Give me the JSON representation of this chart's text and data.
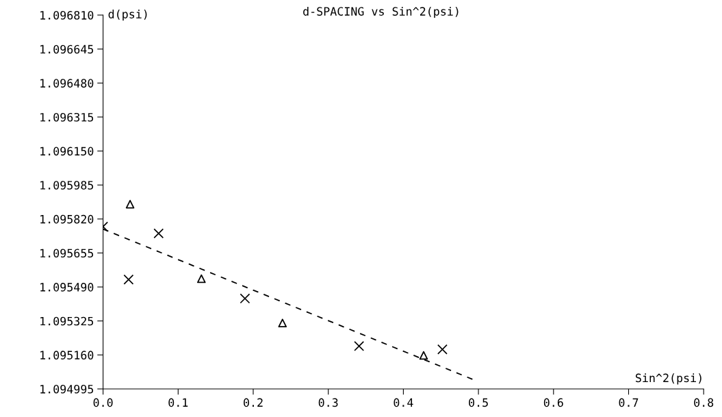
{
  "chart_data": {
    "type": "scatter",
    "title": "d-SPACING vs Sin^2(psi)",
    "xlabel": "Sin^2(psi)",
    "ylabel": "d(psi)",
    "xlim": [
      0,
      0.8
    ],
    "ylim": [
      1.094995,
      1.09681
    ],
    "xticks": [
      {
        "value": 0,
        "label": "0.0"
      },
      {
        "value": 0.1,
        "label": "0.1"
      },
      {
        "value": 0.2,
        "label": "0.2"
      },
      {
        "value": 0.3,
        "label": "0.3"
      },
      {
        "value": 0.4,
        "label": "0.4"
      },
      {
        "value": 0.5,
        "label": "0.5"
      },
      {
        "value": 0.6,
        "label": "0.6"
      },
      {
        "value": 0.7,
        "label": "0.7"
      },
      {
        "value": 0.8,
        "label": "0.8"
      }
    ],
    "yticks": [
      {
        "value": 1.094995,
        "label": "1.094995"
      },
      {
        "value": 1.09516,
        "label": "1.095160"
      },
      {
        "value": 1.095325,
        "label": "1.095325"
      },
      {
        "value": 1.09549,
        "label": "1.095490"
      },
      {
        "value": 1.095655,
        "label": "1.095655"
      },
      {
        "value": 1.09582,
        "label": "1.095820"
      },
      {
        "value": 1.095985,
        "label": "1.095985"
      },
      {
        "value": 1.09615,
        "label": "1.096150"
      },
      {
        "value": 1.096315,
        "label": "1.096315"
      },
      {
        "value": 1.09648,
        "label": "1.096480"
      },
      {
        "value": 1.096645,
        "label": "1.096645"
      },
      {
        "value": 1.09681,
        "label": "1.096810"
      }
    ],
    "grid": false,
    "legend": false,
    "series": [
      {
        "marker": "cross",
        "color": "#000000",
        "x": [
          0.0,
          0.034,
          0.074,
          0.189,
          0.341,
          0.452
        ],
        "values": [
          1.095783,
          1.095526,
          1.09575,
          1.095434,
          1.095203,
          1.095187
        ]
      },
      {
        "marker": "triangle",
        "color": "#000000",
        "x": [
          0.036,
          0.131,
          0.239,
          0.427
        ],
        "values": [
          1.095892,
          1.09553,
          1.095315,
          1.095158
        ]
      },
      {
        "type": "line",
        "marker": "none",
        "line_style": "dashed",
        "color": "#000000",
        "x": [
          0.0,
          0.492
        ],
        "values": [
          1.095771,
          1.095042
        ]
      }
    ]
  }
}
